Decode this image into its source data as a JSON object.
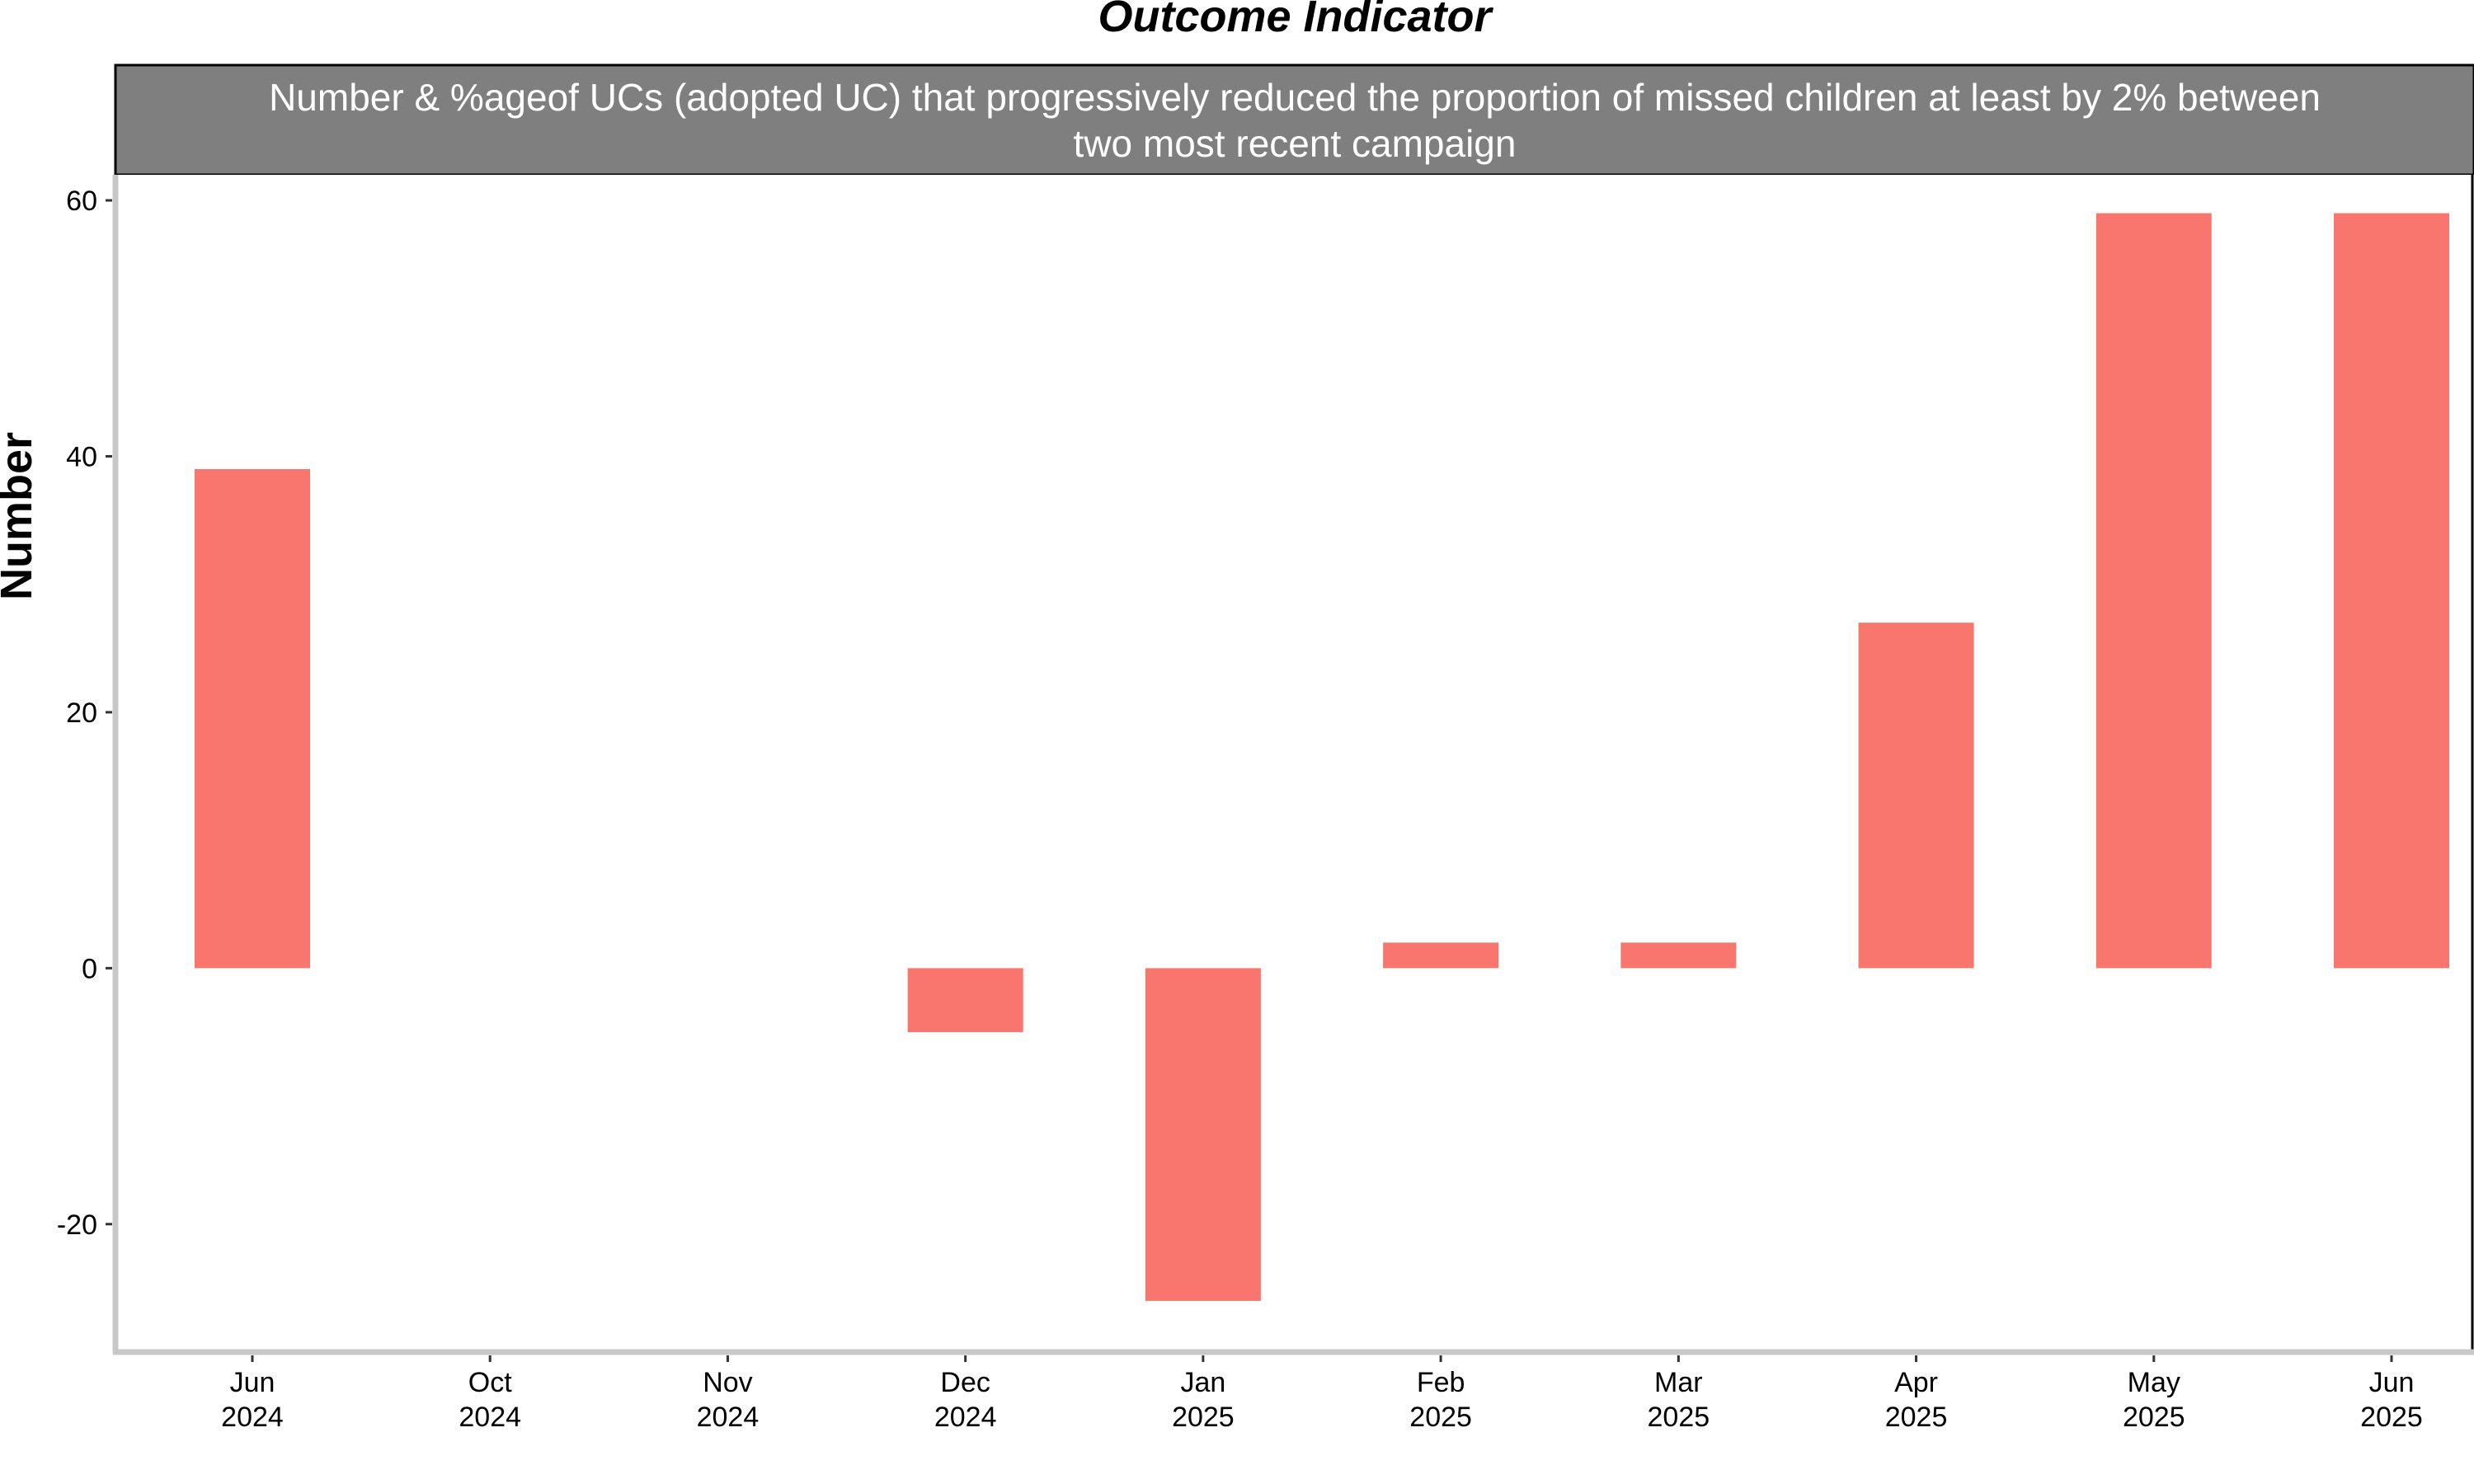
{
  "chart_data": {
    "type": "bar",
    "title": "Outcome Indicator",
    "facet_label": "Number & %ageof UCs (adopted UC) that progressively reduced the proportion of missed children at least by 2% between two most recent campaign",
    "facet_label_lines": [
      "Number & %ageof UCs (adopted UC) that progressively reduced the proportion of missed children at least by 2% between",
      "two most recent campaign"
    ],
    "xlabel": "",
    "ylabel": "Number",
    "categories": [
      [
        "Jun",
        "2024"
      ],
      [
        "Oct",
        "2024"
      ],
      [
        "Nov",
        "2024"
      ],
      [
        "Dec",
        "2024"
      ],
      [
        "Jan",
        "2025"
      ],
      [
        "Feb",
        "2025"
      ],
      [
        "Mar",
        "2025"
      ],
      [
        "Apr",
        "2025"
      ],
      [
        "May",
        "2025"
      ],
      [
        "Jun",
        "2025"
      ]
    ],
    "values": [
      39,
      null,
      null,
      -5,
      -26,
      2,
      2,
      27,
      59,
      59
    ],
    "yticks": [
      -20,
      0,
      20,
      40,
      60
    ],
    "ylim": [
      -30,
      62
    ],
    "grid": false,
    "legend": "none",
    "bar_color": "#F8766D",
    "strip_color": "#7F7F7F",
    "strip_text_color": "#FFFFFF"
  }
}
